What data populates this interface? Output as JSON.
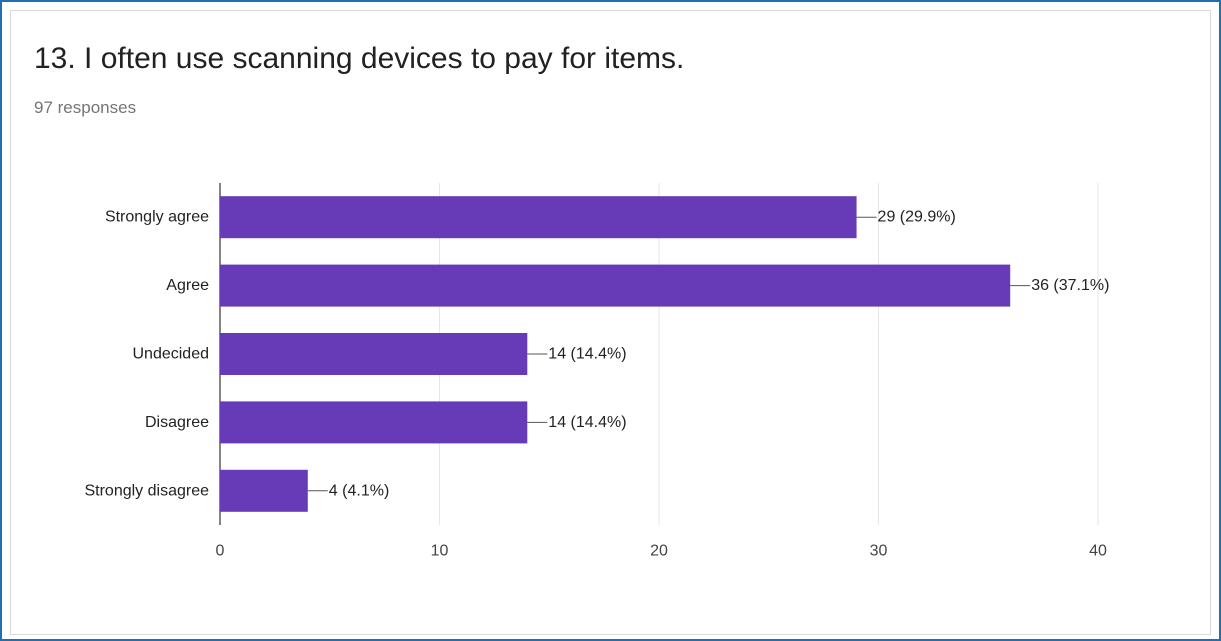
{
  "question": {
    "title": "13. I often use scanning devices to pay for items.",
    "responses": "97 responses"
  },
  "colors": {
    "bar": "#673ab7",
    "grid": "#e6e6e6",
    "axis": "#333333",
    "frame": "#1f6fb5"
  },
  "chart_data": {
    "type": "bar",
    "orientation": "horizontal",
    "categories": [
      "Strongly agree",
      "Agree",
      "Undecided",
      "Disagree",
      "Strongly disagree"
    ],
    "values": [
      29,
      36,
      14,
      14,
      4
    ],
    "data_labels": [
      "29 (29.9%)",
      "36 (37.1%)",
      "14 (14.4%)",
      "14 (14.4%)",
      "4 (4.1%)"
    ],
    "xlim": [
      0,
      40
    ],
    "xticks": [
      0,
      10,
      20,
      30,
      40
    ],
    "grid": true,
    "legend": "none"
  }
}
